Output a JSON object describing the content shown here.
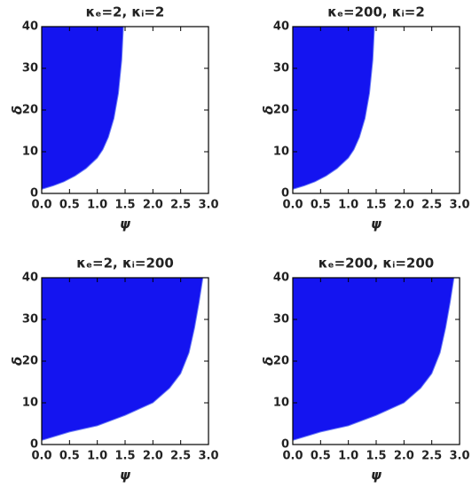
{
  "chart_data": [
    {
      "type": "area",
      "title": "κₑ=2, κᵢ=2",
      "xlabel": "ψ",
      "ylabel": "δ",
      "color": "#1414f0",
      "x": [
        0,
        0.2,
        0.4,
        0.6,
        0.8,
        1.0,
        1.1,
        1.2,
        1.3,
        1.38,
        1.44,
        1.47
      ],
      "values": [
        1,
        1.8,
        2.8,
        4.2,
        6,
        8.5,
        10.5,
        13.5,
        18,
        24,
        32,
        40
      ],
      "xlim": [
        0,
        3
      ],
      "ylim": [
        0,
        40
      ],
      "xticks": [
        {
          "value": 0,
          "label": "0.0"
        },
        {
          "value": 0.5,
          "label": "0.5"
        },
        {
          "value": 1,
          "label": "1.0"
        },
        {
          "value": 1.5,
          "label": "1.5"
        },
        {
          "value": 2,
          "label": "2.0"
        },
        {
          "value": 2.5,
          "label": "2.5"
        },
        {
          "value": 3,
          "label": "3.0"
        }
      ],
      "yticks": [
        0,
        10,
        20,
        30,
        40
      ]
    },
    {
      "type": "area",
      "title": "κₑ=200, κᵢ=2",
      "xlabel": "ψ",
      "ylabel": "δ",
      "color": "#1414f0",
      "x": [
        0,
        0.2,
        0.4,
        0.6,
        0.8,
        1.0,
        1.1,
        1.2,
        1.3,
        1.38,
        1.44,
        1.47
      ],
      "values": [
        1,
        1.8,
        2.8,
        4.2,
        6,
        8.5,
        10.5,
        13.5,
        18,
        24,
        32,
        40
      ],
      "xlim": [
        0,
        3
      ],
      "ylim": [
        0,
        40
      ],
      "xticks": [
        {
          "value": 0,
          "label": "0.0"
        },
        {
          "value": 0.5,
          "label": "0.5"
        },
        {
          "value": 1,
          "label": "1.0"
        },
        {
          "value": 1.5,
          "label": "1.5"
        },
        {
          "value": 2,
          "label": "2.0"
        },
        {
          "value": 2.5,
          "label": "2.5"
        },
        {
          "value": 3,
          "label": "3.0"
        }
      ],
      "yticks": [
        0,
        10,
        20,
        30,
        40
      ]
    },
    {
      "type": "area",
      "title": "κₑ=2, κᵢ=200",
      "xlabel": "ψ",
      "ylabel": "δ",
      "color": "#1414f0",
      "x": [
        0,
        0.5,
        1.0,
        1.5,
        2.0,
        2.3,
        2.5,
        2.65,
        2.75,
        2.83,
        2.9
      ],
      "values": [
        1,
        3,
        4.5,
        7,
        10,
        13.5,
        17,
        22,
        28,
        34,
        40
      ],
      "xlim": [
        0,
        3
      ],
      "ylim": [
        0,
        40
      ],
      "xticks": [
        {
          "value": 0,
          "label": "0.0"
        },
        {
          "value": 0.5,
          "label": "0.5"
        },
        {
          "value": 1,
          "label": "1.0"
        },
        {
          "value": 1.5,
          "label": "1.5"
        },
        {
          "value": 2,
          "label": "2.0"
        },
        {
          "value": 2.5,
          "label": "2.5"
        },
        {
          "value": 3,
          "label": "3.0"
        }
      ],
      "yticks": [
        0,
        10,
        20,
        30,
        40
      ]
    },
    {
      "type": "area",
      "title": "κₑ=200, κᵢ=200",
      "xlabel": "ψ",
      "ylabel": "δ",
      "color": "#1414f0",
      "x": [
        0,
        0.5,
        1.0,
        1.5,
        2.0,
        2.3,
        2.5,
        2.65,
        2.75,
        2.83,
        2.9
      ],
      "values": [
        1,
        3,
        4.5,
        7,
        10,
        13.5,
        17,
        22,
        28,
        34,
        40
      ],
      "xlim": [
        0,
        3
      ],
      "ylim": [
        0,
        40
      ],
      "xticks": [
        {
          "value": 0,
          "label": "0.0"
        },
        {
          "value": 0.5,
          "label": "0.5"
        },
        {
          "value": 1,
          "label": "1.0"
        },
        {
          "value": 1.5,
          "label": "1.5"
        },
        {
          "value": 2,
          "label": "2.0"
        },
        {
          "value": 2.5,
          "label": "2.5"
        },
        {
          "value": 3,
          "label": "3.0"
        }
      ],
      "yticks": [
        0,
        10,
        20,
        30,
        40
      ]
    }
  ]
}
